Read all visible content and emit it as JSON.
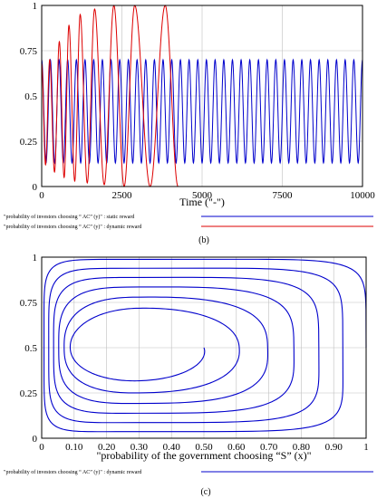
{
  "chart_data": [
    {
      "type": "line",
      "panel_label": "(b)",
      "xlabel": "Time (\"-\")",
      "ylabel": "",
      "xlim": [
        0,
        10000
      ],
      "ylim": [
        0,
        1
      ],
      "x_ticks": [
        "0",
        "2500",
        "5000",
        "7500",
        "10000"
      ],
      "y_ticks": [
        "0",
        "0.25",
        "0.5",
        "0.75",
        "1"
      ],
      "grid": true,
      "legend_placement": "bottom",
      "series": [
        {
          "name": "\"probability of investors choosing “ AC” (y)\" : static reward",
          "color": "#0000cc",
          "oscillation": {
            "cycles": 37,
            "min": 0.13,
            "max": 0.7,
            "start": 0.68,
            "x_start": 0,
            "x_end": 10000
          }
        },
        {
          "name": "\"probability of investors choosing “ AC” (y)\" : dynamic reward",
          "color": "#dd0000",
          "peaks": [
            [
              0,
              0.68
            ],
            [
              250,
              0.7
            ],
            [
              550,
              0.8
            ],
            [
              850,
              0.89
            ],
            [
              1200,
              0.95
            ],
            [
              1650,
              0.98
            ],
            [
              2250,
              1.0
            ],
            [
              2900,
              1.0
            ],
            [
              3850,
              1.0
            ]
          ],
          "troughs": [
            [
              120,
              0.12
            ],
            [
              400,
              0.08
            ],
            [
              700,
              0.05
            ],
            [
              1030,
              0.03
            ],
            [
              1420,
              0.02
            ],
            [
              1950,
              0.01
            ],
            [
              2570,
              0.0
            ],
            [
              3380,
              0.0
            ]
          ],
          "settles_at": {
            "x": 4250,
            "y": 0.0
          }
        }
      ]
    },
    {
      "type": "line",
      "panel_label": "(c)",
      "xlabel": "\"probability of the government choosing “S” (x)\"",
      "ylabel": "",
      "xlim": [
        0,
        1
      ],
      "ylim": [
        0,
        1
      ],
      "x_ticks": [
        "0",
        "0.10",
        "0.20",
        "0.30",
        "0.40",
        "0.50",
        "0.60",
        "0.70",
        "0.80",
        "0.90",
        "1"
      ],
      "y_ticks": [
        "0",
        "0.25",
        "0.5",
        "0.75",
        "1"
      ],
      "grid": true,
      "legend_placement": "bottom",
      "series": [
        {
          "name": "\"probability of investors choosing “ AC” (y)\" : dynamic reward",
          "color": "#0000cc",
          "spiral": {
            "start": [
              0.5,
              0.5
            ],
            "center": [
              0.3,
              0.5
            ],
            "turns": 6,
            "outer_extent": {
              "xmin": 0.0,
              "xmax": 1.0,
              "ymin": 0.0,
              "ymax": 1.0
            }
          }
        }
      ]
    }
  ]
}
